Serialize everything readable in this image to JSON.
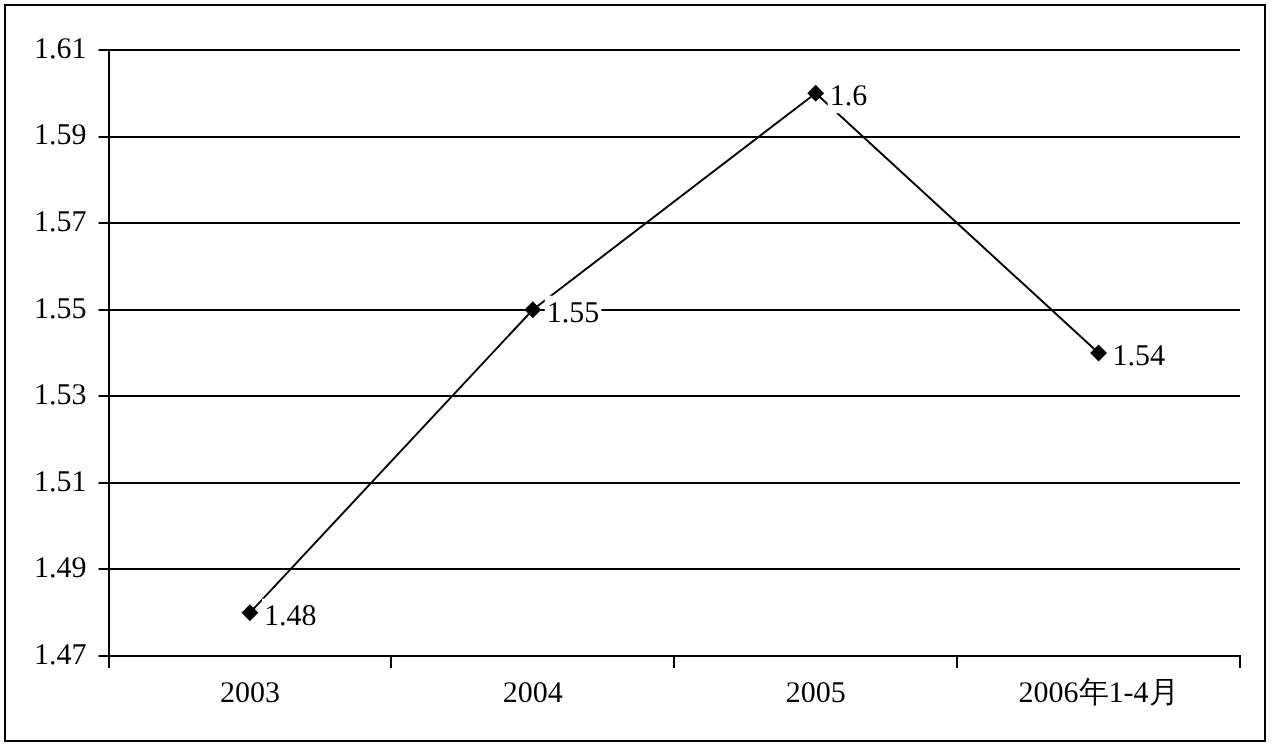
{
  "chart_data": {
    "type": "line",
    "categories": [
      "2003",
      "2004",
      "2005",
      "2006年1-4月"
    ],
    "series": [
      {
        "color": "#000000",
        "values": [
          1.48,
          1.55,
          1.6,
          1.54
        ]
      }
    ],
    "ylim": [
      1.47,
      1.61
    ],
    "yticks": [
      1.47,
      1.49,
      1.51,
      1.53,
      1.55,
      1.57,
      1.59,
      1.61
    ],
    "grid": "y",
    "legend": false,
    "marker": "diamond",
    "line_style": "solid",
    "data_labels": true
  }
}
